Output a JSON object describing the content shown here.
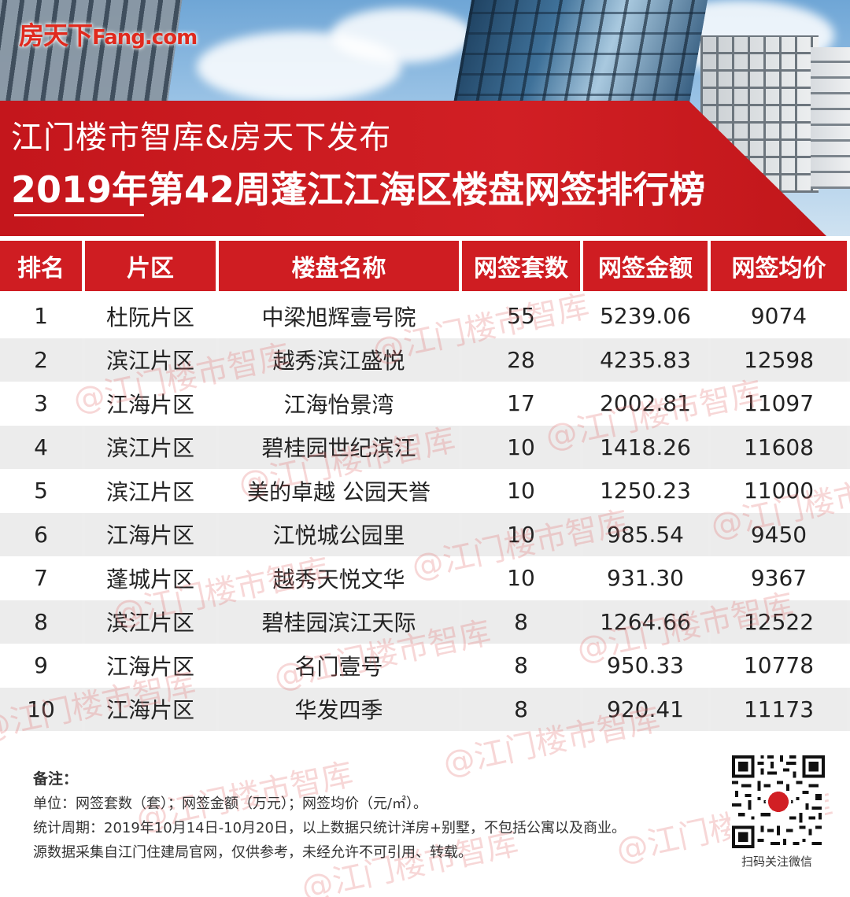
{
  "logo": {
    "cn": "房天下",
    "en": "Fang.com"
  },
  "header": {
    "subtitle": "江门楼市智库&房天下发布",
    "title": "2019年第42周蓬江江海区楼盘网签排行榜"
  },
  "table": {
    "columns": [
      "排名",
      "片区",
      "楼盘名称",
      "网签套数",
      "网签金额",
      "网签均价"
    ],
    "rows": [
      {
        "rank": "1",
        "district": "杜阮片区",
        "name": "中梁旭辉壹号院",
        "units": "55",
        "amount": "5239.06",
        "avg": "9074"
      },
      {
        "rank": "2",
        "district": "滨江片区",
        "name": "越秀滨江盛悦",
        "units": "28",
        "amount": "4235.83",
        "avg": "12598"
      },
      {
        "rank": "3",
        "district": "江海片区",
        "name": "江海怡景湾",
        "units": "17",
        "amount": "2002.81",
        "avg": "11097"
      },
      {
        "rank": "4",
        "district": "滨江片区",
        "name": "碧桂园世纪滨江",
        "units": "10",
        "amount": "1418.26",
        "avg": "11608"
      },
      {
        "rank": "5",
        "district": "滨江片区",
        "name": "美的卓越 公园天誉",
        "units": "10",
        "amount": "1250.23",
        "avg": "11000"
      },
      {
        "rank": "6",
        "district": "江海片区",
        "name": "江悦城公园里",
        "units": "10",
        "amount": "985.54",
        "avg": "9450"
      },
      {
        "rank": "7",
        "district": "蓬城片区",
        "name": "越秀天悦文华",
        "units": "10",
        "amount": "931.30",
        "avg": "9367"
      },
      {
        "rank": "8",
        "district": "滨江片区",
        "name": "碧桂园滨江天际",
        "units": "8",
        "amount": "1264.66",
        "avg": "12522"
      },
      {
        "rank": "9",
        "district": "江海片区",
        "name": "名门壹号",
        "units": "8",
        "amount": "950.33",
        "avg": "10778"
      },
      {
        "rank": "10",
        "district": "江海片区",
        "name": "华发四季",
        "units": "8",
        "amount": "920.41",
        "avg": "11173"
      }
    ]
  },
  "watermark": "@江门楼市智库",
  "notes": {
    "heading": "备注：",
    "unit": "单位：网签套数（套）；网签金额（万元）；网签均价（元/㎡）。",
    "period": "统计周期：2019年10月14日-10月20日，以上数据只统计洋房+别墅，不包括公寓以及商业。",
    "source": "源数据采集自江门住建局官网，仅供参考，未经允许不可引用、转载。"
  },
  "qr": {
    "label": "扫码关注微信",
    "icon": "qr-code-icon"
  },
  "colors": {
    "accent_red": "#cf1d22",
    "row_alt": "#ededed"
  }
}
